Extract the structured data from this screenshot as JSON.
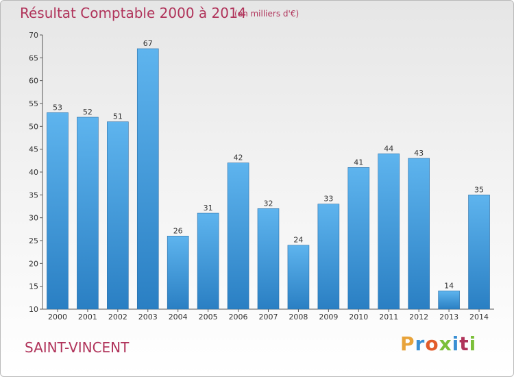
{
  "title": "Résultat Comptable 2000 à 2014",
  "subtitle": "(en milliers d'€)",
  "commune": "SAINT-VINCENT",
  "brand": {
    "letters": [
      "P",
      "r",
      "o",
      "x",
      "i",
      "t",
      "i"
    ],
    "colors": [
      "#e8a33a",
      "#3a8fd3",
      "#e25b2a",
      "#7bbf3a",
      "#3a8fd3",
      "#b0335a",
      "#7bbf3a"
    ]
  },
  "colors": {
    "title": "#b0335a",
    "bar_light": "#5eb4ee",
    "bar_dark": "#2a7fc3"
  },
  "chart_data": {
    "type": "bar",
    "title": "Résultat Comptable 2000 à 2014",
    "categories": [
      "2000",
      "2001",
      "2002",
      "2003",
      "2004",
      "2005",
      "2006",
      "2007",
      "2008",
      "2009",
      "2010",
      "2011",
      "2012",
      "2013",
      "2014"
    ],
    "values": [
      53,
      52,
      51,
      67,
      26,
      31,
      42,
      32,
      24,
      33,
      41,
      44,
      43,
      14,
      35
    ],
    "ylim": [
      10,
      70
    ],
    "yticks": [
      10,
      15,
      20,
      25,
      30,
      35,
      40,
      45,
      50,
      55,
      60,
      65,
      70
    ],
    "grid": false,
    "legend": "none"
  }
}
